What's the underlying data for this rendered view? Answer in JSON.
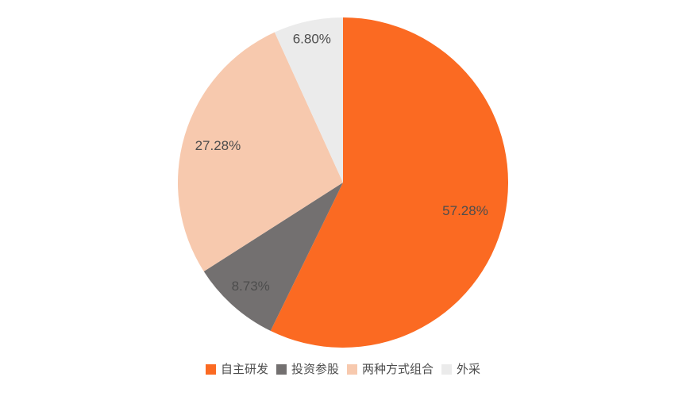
{
  "chart_data": {
    "type": "pie",
    "title": "",
    "background": "#FFFFFF",
    "label_color": "#4D4D4D",
    "start_angle": "top",
    "direction": "clockwise",
    "legend_position": "bottom",
    "series": [
      {
        "name": "自主研发",
        "value": 57.28,
        "label": "57.28%",
        "color": "#FB6A22"
      },
      {
        "name": "投资参股",
        "value": 8.73,
        "label": "8.73%",
        "color": "#737070"
      },
      {
        "name": "两种方式组合",
        "value": 27.28,
        "label": "27.28%",
        "color": "#F7C9AE"
      },
      {
        "name": "外采",
        "value": 6.8,
        "label": "6.80%",
        "color": "#EBEBEB"
      }
    ]
  }
}
